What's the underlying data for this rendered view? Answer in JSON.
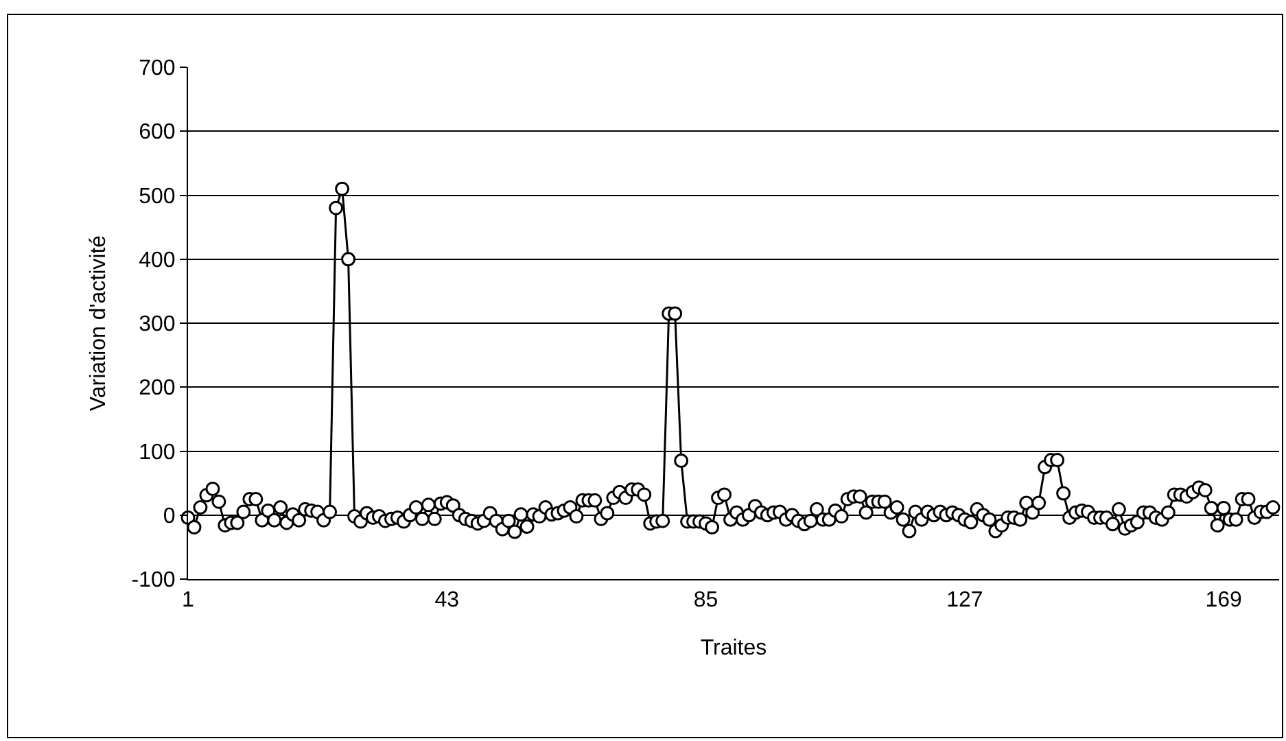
{
  "chart_data": {
    "type": "line",
    "xlabel": "Traites",
    "ylabel": "Variation d'activité",
    "x": [
      1,
      2,
      3,
      4,
      5,
      6,
      7,
      8,
      9,
      10,
      11,
      12,
      13,
      14,
      15,
      16,
      17,
      18,
      19,
      20,
      21,
      22,
      23,
      24,
      25,
      26,
      27,
      28,
      29,
      30,
      31,
      32,
      33,
      34,
      35,
      36,
      37,
      38,
      39,
      40,
      41,
      42,
      43,
      44,
      45,
      46,
      47,
      48,
      49,
      50,
      51,
      52,
      53,
      54,
      55,
      56,
      57,
      58,
      59,
      60,
      61,
      62,
      63,
      64,
      65,
      66,
      67,
      68,
      69,
      70,
      71,
      72,
      73,
      74,
      75,
      76,
      77,
      78,
      79,
      80,
      81,
      82,
      83,
      84,
      85,
      86,
      87,
      88,
      89,
      90,
      91,
      92,
      93,
      94,
      95,
      96,
      97,
      98,
      99,
      100,
      101,
      102,
      103,
      104,
      105,
      106,
      107,
      108,
      109,
      110,
      111,
      112,
      113,
      114,
      115,
      116,
      117,
      118,
      119,
      120,
      121,
      122,
      123,
      124,
      125,
      126,
      127,
      128,
      129,
      130,
      131,
      132,
      133,
      134,
      135,
      136,
      137,
      138,
      139,
      140,
      141,
      142,
      143,
      144,
      145,
      146,
      147,
      148,
      149,
      150,
      151,
      152,
      153,
      154,
      155,
      156,
      157,
      158,
      159,
      160,
      161,
      162,
      163,
      164,
      165,
      166,
      167,
      168,
      169,
      170,
      171,
      172,
      173,
      174,
      175,
      176,
      177
    ],
    "series": [
      {
        "color": "#000000",
        "values": [
          -4,
          -19,
          12,
          31,
          41,
          21,
          -16,
          -12,
          -12,
          5,
          25,
          25,
          -8,
          7,
          -8,
          12,
          -12,
          1,
          -8,
          9,
          7,
          5,
          -8,
          5,
          480,
          510,
          400,
          -2,
          -10,
          3,
          -4,
          -2,
          -9,
          -6,
          -4,
          -10,
          0,
          12,
          -6,
          16,
          -6,
          18,
          20,
          15,
          0,
          -6,
          -9,
          -13,
          -9,
          3,
          -9,
          -22,
          -9,
          -26,
          1,
          -18,
          1,
          -2,
          12,
          1,
          3,
          7,
          12,
          -2,
          23,
          23,
          23,
          -6,
          3,
          27,
          36,
          27,
          40,
          40,
          32,
          -13,
          -10,
          -9,
          315,
          315,
          85,
          -10,
          -10,
          -10,
          -13,
          -19,
          27,
          32,
          -7,
          4,
          -7,
          0,
          14,
          4,
          0,
          4,
          5,
          -7,
          0,
          -9,
          -14,
          -9,
          9,
          -7,
          -7,
          7,
          -2,
          25,
          29,
          29,
          4,
          21,
          21,
          21,
          4,
          12,
          -7,
          -25,
          5,
          -7,
          5,
          0,
          5,
          0,
          4,
          0,
          -7,
          -11,
          9,
          0,
          -7,
          -25,
          -16,
          -4,
          -4,
          -7,
          19,
          4,
          19,
          75,
          86,
          86,
          34,
          -4,
          4,
          7,
          5,
          -4,
          -4,
          -4,
          -14,
          9,
          -21,
          -16,
          -11,
          4,
          4,
          -4,
          -7,
          4,
          32,
          32,
          29,
          36,
          43,
          39,
          11,
          -16,
          11,
          -7,
          -7,
          25,
          25,
          -4,
          5,
          5,
          12
        ]
      }
    ],
    "xlim": [
      1,
      178
    ],
    "xticks": [
      1,
      43,
      85,
      127,
      169
    ],
    "ylim": [
      -100,
      700
    ],
    "yticks": [
      -100,
      0,
      100,
      200,
      300,
      400,
      500,
      600,
      700
    ],
    "grid": "y",
    "marker": "circle",
    "line_style": "solid"
  }
}
